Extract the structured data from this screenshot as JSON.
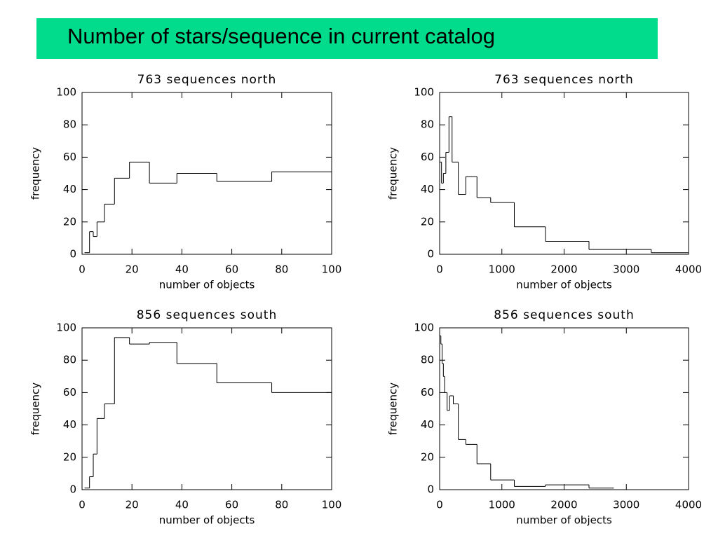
{
  "header": {
    "title": "Number of stars/sequence in current catalog"
  },
  "chart_data": [
    {
      "type": "histogram",
      "title": "763 sequences north",
      "x_label": "number of objects",
      "y_label": "frequency",
      "bins": [
        1,
        3,
        4.5,
        6,
        9,
        13,
        19,
        27,
        38,
        54,
        76,
        100
      ],
      "counts": [
        1,
        14,
        11,
        20,
        31,
        47,
        57,
        44,
        50,
        45,
        51
      ],
      "color": "#000000",
      "grid": false,
      "xlim": [
        0,
        100
      ],
      "xticks": [
        0,
        20,
        40,
        60,
        80,
        100
      ],
      "ylim": [
        0,
        100
      ],
      "yticks": [
        0,
        20,
        40,
        60,
        80,
        100
      ]
    },
    {
      "type": "histogram",
      "title": "763 sequences north",
      "x_label": "number of objects",
      "y_label": "frequency",
      "bins": [
        0,
        30,
        60,
        100,
        150,
        200,
        300,
        420,
        600,
        820,
        1200,
        1700,
        2400,
        3400,
        4000
      ],
      "counts": [
        57,
        44,
        50,
        63,
        85,
        57,
        37,
        48,
        35,
        32,
        17,
        8,
        3,
        1
      ],
      "color": "#000000",
      "grid": false,
      "xlim": [
        0,
        4000
      ],
      "xticks": [
        0,
        1000,
        2000,
        3000,
        4000
      ],
      "ylim": [
        0,
        100
      ],
      "yticks": [
        0,
        20,
        40,
        60,
        80,
        100
      ]
    },
    {
      "type": "histogram",
      "title": "856 sequences south",
      "x_label": "number of objects",
      "y_label": "frequency",
      "bins": [
        1,
        3,
        4.5,
        6,
        9,
        13,
        19,
        27,
        38,
        54,
        76,
        100
      ],
      "counts": [
        1,
        8,
        22,
        44,
        53,
        94,
        90,
        91,
        78,
        66,
        60
      ],
      "color": "#000000",
      "grid": false,
      "xlim": [
        0,
        100
      ],
      "xticks": [
        0,
        20,
        40,
        60,
        80,
        100
      ],
      "ylim": [
        0,
        100
      ],
      "yticks": [
        0,
        20,
        40,
        60,
        80,
        100
      ]
    },
    {
      "type": "histogram",
      "title": "856 sequences south",
      "x_label": "number of objects",
      "y_label": "frequency",
      "bins": [
        0,
        20,
        40,
        60,
        80,
        120,
        160,
        220,
        300,
        420,
        600,
        820,
        1200,
        1700,
        2400,
        2800
      ],
      "counts": [
        95,
        90,
        78,
        70,
        60,
        49,
        58,
        53,
        31,
        28,
        16,
        6,
        2,
        3,
        1
      ],
      "color": "#000000",
      "grid": false,
      "xlim": [
        0,
        4000
      ],
      "xticks": [
        0,
        1000,
        2000,
        3000,
        4000
      ],
      "ylim": [
        0,
        100
      ],
      "yticks": [
        0,
        20,
        40,
        60,
        80,
        100
      ]
    }
  ]
}
